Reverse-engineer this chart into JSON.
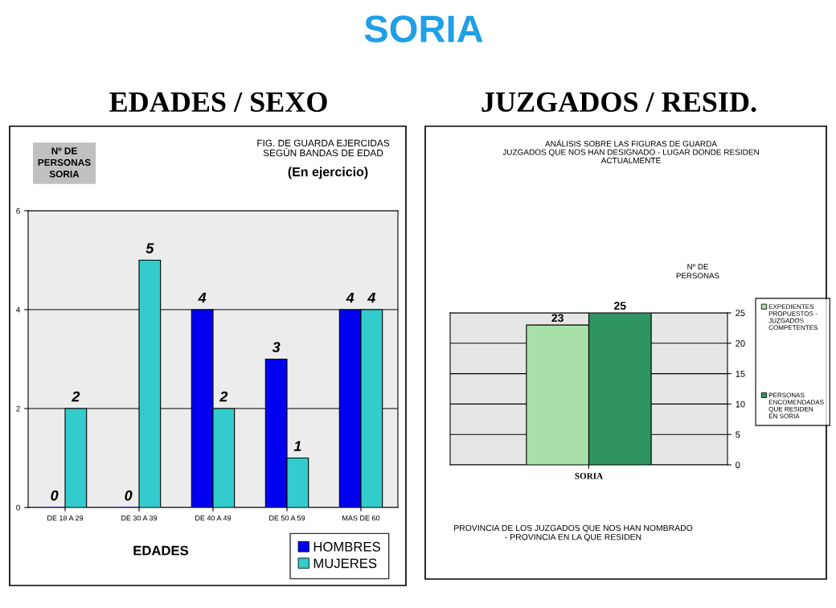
{
  "chart_data": [
    {
      "type": "bar",
      "title": "EDADES / SEXO",
      "subtitle": "FIG. DE GUARDA EJERCIDAS\nSEGÚN BANDAS DE EDAD",
      "annotations": [
        "SORIA",
        "(En ejercicio)"
      ],
      "ylabel": "Nº DE\nPERSONAS\nSORIA",
      "xlabel": "EDADES",
      "categories": [
        "DE 18 A 29",
        "DE 30 A 39",
        "DE 40 A 49",
        "DE 50 A 59",
        "MAS DE 60"
      ],
      "series": [
        {
          "name": "HOMBRES",
          "color": "#0000ee",
          "values": [
            0,
            0,
            4,
            3,
            4
          ]
        },
        {
          "name": "MUJERES",
          "color": "#33cccc",
          "values": [
            2,
            5,
            2,
            1,
            4
          ]
        }
      ],
      "ylim": [
        0,
        6
      ],
      "yticks": [
        0,
        2,
        4,
        6
      ],
      "grid": "y",
      "legend": "bottom right",
      "data_labels": true
    },
    {
      "type": "bar",
      "title": "JUZGADOS / RESID.",
      "subtitle": "ANÁLISIS SOBRE LAS FIGURAS DE GUARDA\nJUZGADOS QUE NOS HAN DESIGNADO - LUGAR DONDE RESIDEN\nACTUALMENTE",
      "ylabel": "Nº DE\nPERSONAS",
      "xlabel": "PROVINCIA DE LOS JUZGADOS QUE NOS HAN NOMBRADO\n- PROVINCIA EN LA QUE RESIDEN",
      "categories": [
        "SORIA"
      ],
      "series": [
        {
          "name": "EXPEDIENTES\nPROPUESTOS -\nJUZGADOS\nCOMPETENTES",
          "color": "#a8e0a8",
          "values": [
            23
          ]
        },
        {
          "name": "PERSONAS\nENCOMENDADAS\nQUE RESIDEN\nEN SORIA",
          "color": "#2f9461",
          "values": [
            25
          ]
        }
      ],
      "ylim": [
        0,
        25
      ],
      "yticks": [
        0,
        5,
        10,
        15,
        20,
        25
      ],
      "grid": "y",
      "legend": "right",
      "data_labels": true
    }
  ]
}
